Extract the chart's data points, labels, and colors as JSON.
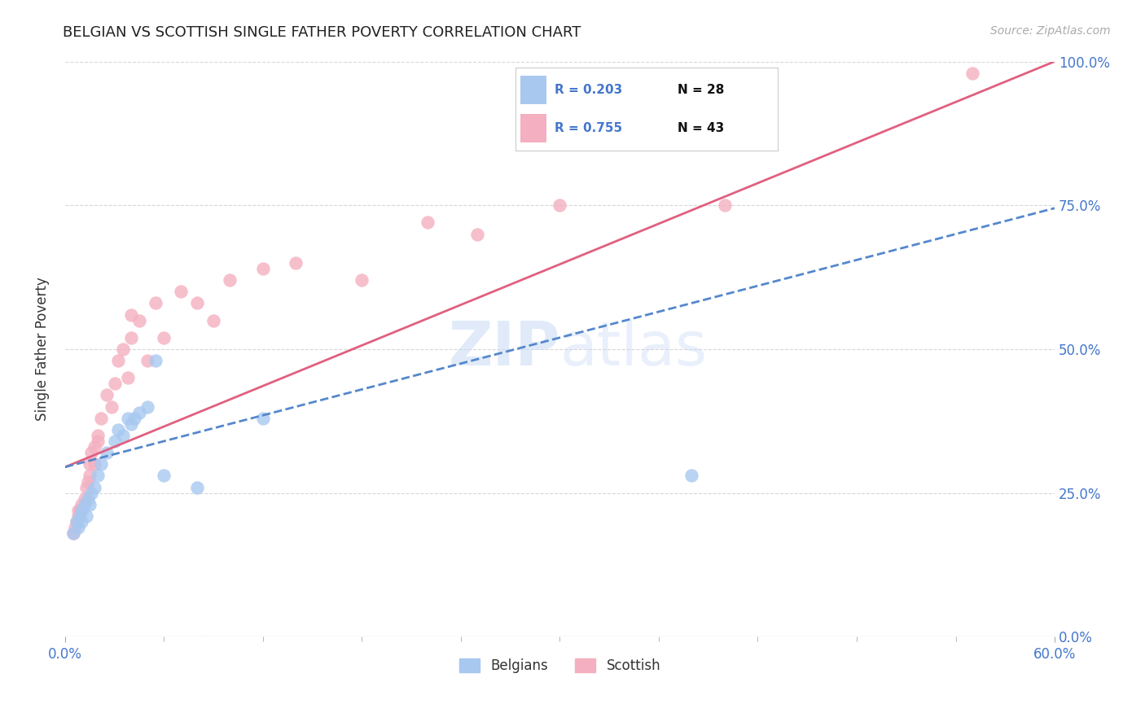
{
  "title": "BELGIAN VS SCOTTISH SINGLE FATHER POVERTY CORRELATION CHART",
  "source": "Source: ZipAtlas.com",
  "ylabel": "Single Father Poverty",
  "xlim": [
    0.0,
    0.6
  ],
  "ylim": [
    0.0,
    1.0
  ],
  "yticks": [
    0.0,
    0.25,
    0.5,
    0.75,
    1.0
  ],
  "belgian_color": "#a8c8f0",
  "belgian_line_color": "#5588cc",
  "scottish_color": "#f4b0c0",
  "scottish_line_color": "#e06080",
  "belgian_R": 0.203,
  "belgian_N": 28,
  "scottish_R": 0.755,
  "scottish_N": 43,
  "watermark_zip": "ZIP",
  "watermark_atlas": "atlas",
  "belgian_x": [
    0.005,
    0.007,
    0.008,
    0.009,
    0.01,
    0.01,
    0.012,
    0.013,
    0.014,
    0.015,
    0.016,
    0.018,
    0.02,
    0.022,
    0.025,
    0.03,
    0.032,
    0.035,
    0.038,
    0.04,
    0.042,
    0.045,
    0.05,
    0.055,
    0.06,
    0.08,
    0.12,
    0.38
  ],
  "belgian_y": [
    0.18,
    0.2,
    0.19,
    0.21,
    0.2,
    0.22,
    0.23,
    0.21,
    0.24,
    0.23,
    0.25,
    0.26,
    0.28,
    0.3,
    0.32,
    0.34,
    0.36,
    0.35,
    0.38,
    0.37,
    0.38,
    0.39,
    0.4,
    0.48,
    0.28,
    0.26,
    0.38,
    0.28
  ],
  "scottish_x": [
    0.005,
    0.006,
    0.007,
    0.008,
    0.008,
    0.009,
    0.01,
    0.01,
    0.012,
    0.013,
    0.014,
    0.015,
    0.015,
    0.016,
    0.018,
    0.018,
    0.02,
    0.02,
    0.022,
    0.025,
    0.028,
    0.03,
    0.032,
    0.035,
    0.038,
    0.04,
    0.04,
    0.045,
    0.05,
    0.055,
    0.06,
    0.07,
    0.08,
    0.09,
    0.1,
    0.12,
    0.14,
    0.18,
    0.22,
    0.25,
    0.3,
    0.4,
    0.55
  ],
  "scottish_y": [
    0.18,
    0.19,
    0.2,
    0.21,
    0.22,
    0.22,
    0.22,
    0.23,
    0.24,
    0.26,
    0.27,
    0.28,
    0.3,
    0.32,
    0.3,
    0.33,
    0.34,
    0.35,
    0.38,
    0.42,
    0.4,
    0.44,
    0.48,
    0.5,
    0.45,
    0.52,
    0.56,
    0.55,
    0.48,
    0.58,
    0.52,
    0.6,
    0.58,
    0.55,
    0.62,
    0.64,
    0.65,
    0.62,
    0.72,
    0.7,
    0.75,
    0.75,
    0.98
  ],
  "belgian_trend_x0": 0.0,
  "belgian_trend_y0": 0.295,
  "belgian_trend_x1": 0.6,
  "belgian_trend_y1": 0.745,
  "scottish_trend_x0": 0.0,
  "scottish_trend_y0": 0.295,
  "scottish_trend_x1": 0.6,
  "scottish_trend_y1": 1.0
}
